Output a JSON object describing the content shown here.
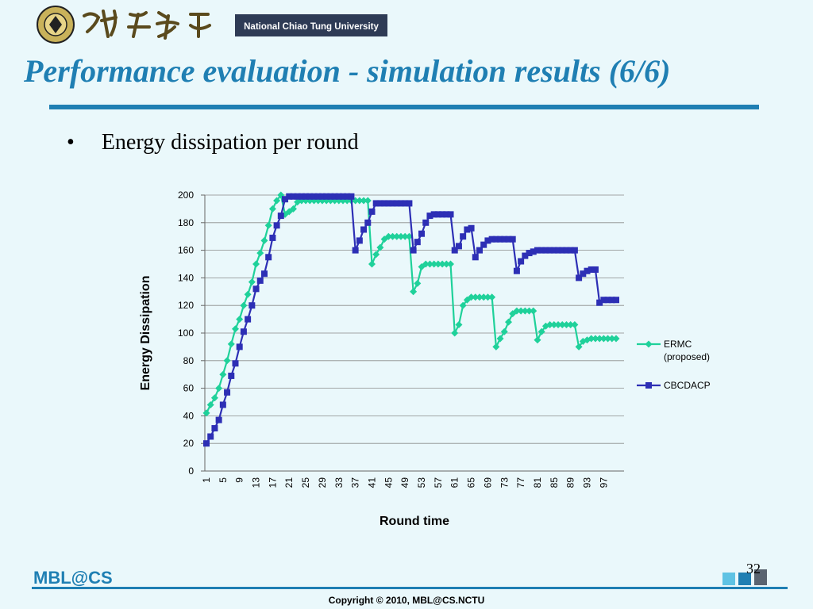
{
  "header": {
    "university_name": "National Chiao Tung University",
    "title": "Performance evaluation - simulation results (6/6)"
  },
  "bullet": {
    "marker": "•",
    "text": "Energy dissipation per round"
  },
  "chart_data": {
    "type": "line",
    "title": "",
    "xlabel": "Round time",
    "ylabel": "Energy Dissipation",
    "ylim": [
      0,
      200
    ],
    "yticks": [
      0,
      20,
      40,
      60,
      80,
      100,
      120,
      140,
      160,
      180,
      200
    ],
    "xlim": [
      1,
      100
    ],
    "xtick_labels": [
      "1",
      "5",
      "9",
      "13",
      "17",
      "21",
      "25",
      "29",
      "33",
      "37",
      "41",
      "45",
      "49",
      "53",
      "57",
      "61",
      "65",
      "69",
      "73",
      "77",
      "81",
      "85",
      "89",
      "93",
      "97"
    ],
    "grid": "horizontal",
    "legend_position": "right",
    "colors": {
      "ERMC": "#1fd19a",
      "CBCDACP": "#2d2fb5"
    },
    "series": [
      {
        "name": "ERMC (proposed)",
        "marker": "diamond",
        "values": [
          42,
          48,
          53,
          60,
          70,
          80,
          92,
          103,
          110,
          120,
          128,
          137,
          150,
          158,
          167,
          178,
          190,
          196,
          200,
          186,
          188,
          190,
          195,
          196,
          196,
          196,
          196,
          196,
          196,
          196,
          196,
          196,
          196,
          196,
          196,
          196,
          196,
          196,
          196,
          196,
          150,
          157,
          162,
          168,
          170,
          170,
          170,
          170,
          170,
          170,
          130,
          136,
          148,
          150,
          150,
          150,
          150,
          150,
          150,
          150,
          100,
          106,
          120,
          124,
          126,
          126,
          126,
          126,
          126,
          126,
          90,
          96,
          101,
          108,
          114,
          116,
          116,
          116,
          116,
          116,
          95,
          101,
          105,
          106,
          106,
          106,
          106,
          106,
          106,
          106,
          90,
          94,
          95,
          96,
          96,
          96,
          96,
          96,
          96,
          96
        ]
      },
      {
        "name": "CBCDACP",
        "marker": "square",
        "values": [
          20,
          25,
          31,
          37,
          48,
          57,
          69,
          78,
          90,
          101,
          110,
          120,
          132,
          138,
          143,
          155,
          169,
          178,
          185,
          197,
          199,
          199,
          199,
          199,
          199,
          199,
          199,
          199,
          199,
          199,
          199,
          199,
          199,
          199,
          199,
          199,
          160,
          167,
          175,
          180,
          188,
          194,
          194,
          194,
          194,
          194,
          194,
          194,
          194,
          194,
          160,
          166,
          172,
          180,
          185,
          186,
          186,
          186,
          186,
          186,
          160,
          163,
          170,
          175,
          176,
          155,
          160,
          164,
          167,
          168,
          168,
          168,
          168,
          168,
          168,
          145,
          152,
          156,
          158,
          159,
          160,
          160,
          160,
          160,
          160,
          160,
          160,
          160,
          160,
          160,
          140,
          143,
          145,
          146,
          146,
          122,
          124,
          124,
          124,
          124
        ]
      }
    ]
  },
  "footer": {
    "logo_text": "MBL@CS",
    "page_number": "32",
    "copyright": "Copyright © 2010, MBL@CS.NCTU"
  }
}
